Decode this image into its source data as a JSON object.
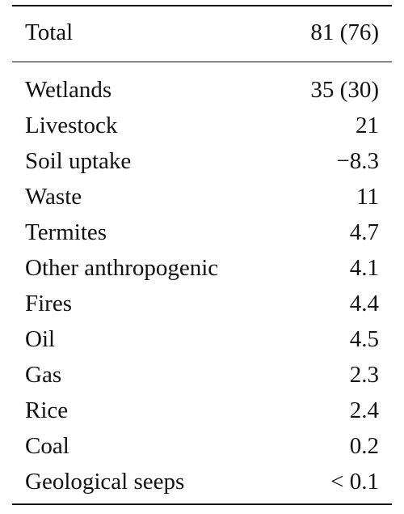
{
  "table": {
    "header": {
      "label": "Total",
      "value": "81 (76)"
    },
    "rows": [
      {
        "label": "Wetlands",
        "value": "35 (30)"
      },
      {
        "label": "Livestock",
        "value": "21"
      },
      {
        "label": "Soil uptake",
        "value": "−8.3"
      },
      {
        "label": "Waste",
        "value": "11"
      },
      {
        "label": "Termites",
        "value": "4.7"
      },
      {
        "label": "Other anthropogenic",
        "value": "4.1"
      },
      {
        "label": "Fires",
        "value": "4.4"
      },
      {
        "label": "Oil",
        "value": "4.5"
      },
      {
        "label": "Gas",
        "value": "2.3"
      },
      {
        "label": "Rice",
        "value": "2.4"
      },
      {
        "label": "Coal",
        "value": "0.2"
      },
      {
        "label": "Geological seeps",
        "value": "< 0.1"
      }
    ]
  }
}
